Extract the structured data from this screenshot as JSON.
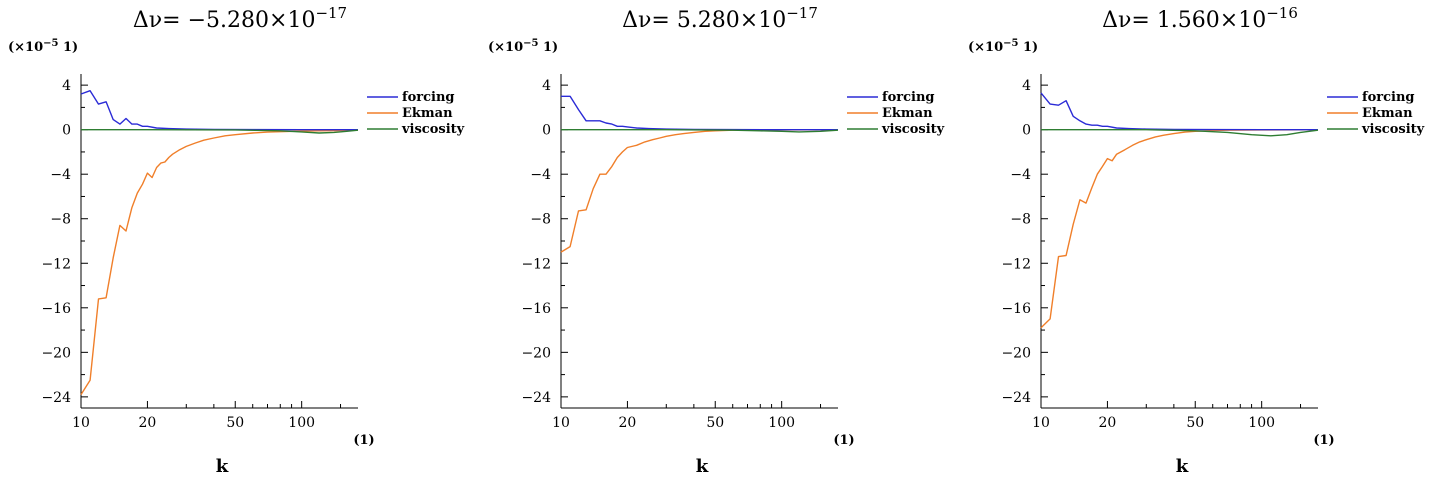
{
  "chart_data": [
    {
      "type": "line",
      "title_prefix": "Δν=",
      "title_mantissa": "−5.280×10",
      "title_exponent": "−17",
      "y_unit_prefix": "(×10",
      "y_unit_exponent": "−5",
      "y_unit_suffix": " 1)",
      "x_unit": "(1)",
      "xlabel": "k",
      "xscale": "log",
      "xlim": [
        10,
        180
      ],
      "ylim": [
        -25,
        5
      ],
      "xticks": [
        10,
        20,
        50,
        100
      ],
      "xtick_labels": [
        "10",
        "20",
        "50",
        "100"
      ],
      "yticks": [
        4,
        0,
        -4,
        -8,
        -12,
        -16,
        -20,
        -24
      ],
      "ytick_labels": [
        "4",
        "0",
        "−4",
        "−8",
        "−12",
        "−16",
        "−20",
        "−24"
      ],
      "legend_position": "top-right",
      "series": [
        {
          "name": "forcing",
          "color": "#2b2bd6",
          "x": [
            10,
            11,
            12,
            13,
            14,
            15,
            16,
            17,
            18,
            19,
            20,
            22,
            25,
            30,
            40,
            60,
            100,
            180
          ],
          "values": [
            3.2,
            3.5,
            2.3,
            2.5,
            0.9,
            0.5,
            1.0,
            0.5,
            0.5,
            0.3,
            0.3,
            0.15,
            0.1,
            0.05,
            0.02,
            0.01,
            0.0,
            0.0
          ]
        },
        {
          "name": "Ekman",
          "color": "#f07f2a",
          "x": [
            10,
            11,
            12,
            13,
            14,
            15,
            16,
            17,
            18,
            19,
            20,
            21,
            22,
            23,
            24,
            25,
            26,
            28,
            30,
            33,
            36,
            40,
            45,
            50,
            60,
            70,
            80,
            100,
            120,
            150,
            180
          ],
          "values": [
            -23.8,
            -22.5,
            -15.2,
            -15.1,
            -11.5,
            -8.6,
            -9.1,
            -7.0,
            -5.7,
            -4.9,
            -3.9,
            -4.3,
            -3.4,
            -3.0,
            -2.9,
            -2.5,
            -2.2,
            -1.8,
            -1.5,
            -1.2,
            -0.95,
            -0.75,
            -0.55,
            -0.45,
            -0.3,
            -0.22,
            -0.18,
            -0.12,
            -0.1,
            -0.08,
            -0.05
          ]
        },
        {
          "name": "viscosity",
          "color": "#2e7d32",
          "x": [
            10,
            20,
            50,
            80,
            100,
            120,
            140,
            160,
            180
          ],
          "values": [
            0.0,
            0.0,
            -0.02,
            -0.1,
            -0.2,
            -0.3,
            -0.25,
            -0.15,
            -0.05
          ]
        }
      ]
    },
    {
      "type": "line",
      "title_prefix": "Δν=",
      "title_mantissa": "5.280×10",
      "title_exponent": "−17",
      "y_unit_prefix": "(×10",
      "y_unit_exponent": "−5",
      "y_unit_suffix": " 1)",
      "x_unit": "(1)",
      "xlabel": "k",
      "xscale": "log",
      "xlim": [
        10,
        180
      ],
      "ylim": [
        -25,
        5
      ],
      "xticks": [
        10,
        20,
        50,
        100
      ],
      "xtick_labels": [
        "10",
        "20",
        "50",
        "100"
      ],
      "yticks": [
        4,
        0,
        -4,
        -8,
        -12,
        -16,
        -20,
        -24
      ],
      "ytick_labels": [
        "4",
        "0",
        "−4",
        "−8",
        "−12",
        "−16",
        "−20",
        "−24"
      ],
      "legend_position": "top-right",
      "series": [
        {
          "name": "forcing",
          "color": "#2b2bd6",
          "x": [
            10,
            11,
            12,
            13,
            14,
            15,
            16,
            17,
            18,
            19,
            20,
            22,
            25,
            30,
            40,
            60,
            100,
            180
          ],
          "values": [
            3.0,
            3.0,
            1.8,
            0.8,
            0.8,
            0.8,
            0.6,
            0.5,
            0.3,
            0.3,
            0.25,
            0.15,
            0.1,
            0.05,
            0.02,
            0.01,
            0.0,
            0.0
          ]
        },
        {
          "name": "Ekman",
          "color": "#f07f2a",
          "x": [
            10,
            11,
            12,
            13,
            14,
            15,
            16,
            17,
            18,
            19,
            20,
            22,
            24,
            26,
            28,
            30,
            33,
            36,
            40,
            45,
            50,
            60,
            70,
            100,
            150,
            180
          ],
          "values": [
            -11.0,
            -10.5,
            -7.3,
            -7.2,
            -5.3,
            -4.0,
            -4.0,
            -3.3,
            -2.5,
            -2.0,
            -1.6,
            -1.4,
            -1.1,
            -0.9,
            -0.75,
            -0.6,
            -0.45,
            -0.35,
            -0.25,
            -0.15,
            -0.1,
            -0.05,
            -0.03,
            -0.02,
            -0.01,
            0.0
          ]
        },
        {
          "name": "viscosity",
          "color": "#2e7d32",
          "x": [
            10,
            30,
            60,
            80,
            100,
            120,
            150,
            180
          ],
          "values": [
            0.0,
            0.0,
            -0.05,
            -0.1,
            -0.15,
            -0.2,
            -0.15,
            -0.05
          ]
        }
      ]
    },
    {
      "type": "line",
      "title_prefix": "Δν=",
      "title_mantissa": "1.560×10",
      "title_exponent": "−16",
      "y_unit_prefix": "(×10",
      "y_unit_exponent": "−5",
      "y_unit_suffix": " 1)",
      "x_unit": "(1)",
      "xlabel": "k",
      "xscale": "log",
      "xlim": [
        10,
        180
      ],
      "ylim": [
        -25,
        5
      ],
      "xticks": [
        10,
        20,
        50,
        100
      ],
      "xtick_labels": [
        "10",
        "20",
        "50",
        "100"
      ],
      "yticks": [
        4,
        0,
        -4,
        -8,
        -12,
        -16,
        -20,
        -24
      ],
      "ytick_labels": [
        "4",
        "0",
        "−4",
        "−8",
        "−12",
        "−16",
        "−20",
        "−24"
      ],
      "legend_position": "top-right",
      "series": [
        {
          "name": "forcing",
          "color": "#2b2bd6",
          "x": [
            10,
            11,
            12,
            13,
            14,
            15,
            16,
            17,
            18,
            19,
            20,
            22,
            25,
            30,
            40,
            60,
            100,
            180
          ],
          "values": [
            3.3,
            2.3,
            2.2,
            2.6,
            1.2,
            0.8,
            0.5,
            0.4,
            0.4,
            0.3,
            0.3,
            0.15,
            0.1,
            0.05,
            0.02,
            0.01,
            0.0,
            0.0
          ]
        },
        {
          "name": "Ekman",
          "color": "#f07f2a",
          "x": [
            10,
            11,
            12,
            13,
            14,
            15,
            16,
            17,
            18,
            19,
            20,
            21,
            22,
            24,
            26,
            28,
            30,
            33,
            36,
            40,
            45,
            50,
            60,
            70,
            100,
            150,
            180
          ],
          "values": [
            -17.8,
            -17.0,
            -11.4,
            -11.3,
            -8.5,
            -6.3,
            -6.6,
            -5.2,
            -4.0,
            -3.3,
            -2.6,
            -2.8,
            -2.2,
            -1.8,
            -1.4,
            -1.1,
            -0.9,
            -0.65,
            -0.5,
            -0.35,
            -0.22,
            -0.15,
            -0.08,
            -0.05,
            -0.02,
            -0.01,
            0.0
          ]
        },
        {
          "name": "viscosity",
          "color": "#2e7d32",
          "x": [
            10,
            30,
            50,
            70,
            90,
            110,
            130,
            150,
            180
          ],
          "values": [
            0.0,
            0.0,
            -0.1,
            -0.25,
            -0.45,
            -0.55,
            -0.45,
            -0.25,
            -0.05
          ]
        }
      ]
    }
  ]
}
